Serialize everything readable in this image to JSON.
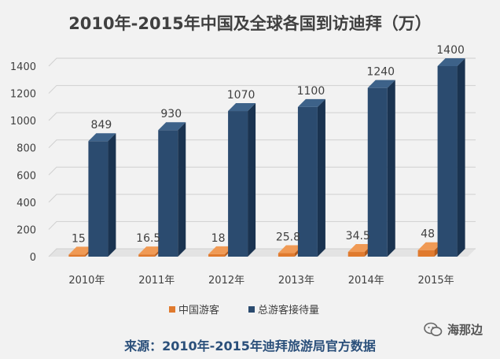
{
  "chart_data": {
    "type": "bar",
    "title": "2010年-2015年中国及全球各国到访迪拜（万）",
    "categories": [
      "2010年",
      "2011年",
      "2012年",
      "2013年",
      "2014年",
      "2015年"
    ],
    "series": [
      {
        "name": "中国游客",
        "values": [
          15,
          16.5,
          18,
          25.8,
          34.5,
          48
        ],
        "labels": [
          "15",
          "16.5",
          "18",
          "25.8",
          "34.5",
          "48"
        ]
      },
      {
        "name": "总游客接待量",
        "values": [
          849,
          930,
          1070,
          1100,
          1240,
          1400
        ],
        "labels": [
          "849",
          "930",
          "1070",
          "1100",
          "1240",
          "1400"
        ]
      }
    ],
    "yticks": [
      "0",
      "200",
      "400",
      "600",
      "800",
      "1000",
      "1200",
      "1400"
    ],
    "ylim": [
      0,
      1400
    ],
    "grid": true,
    "legend": "bottom",
    "colors": {
      "china": "#e07a2e",
      "total": "#2b4b6f",
      "total_side": "#1a3350",
      "total_top": "#3d6289"
    }
  },
  "source_note": "来源：2010年-2015年迪拜旅游局官方数据",
  "watermark": {
    "label": "海那边",
    "icon": "wechat-icon"
  }
}
